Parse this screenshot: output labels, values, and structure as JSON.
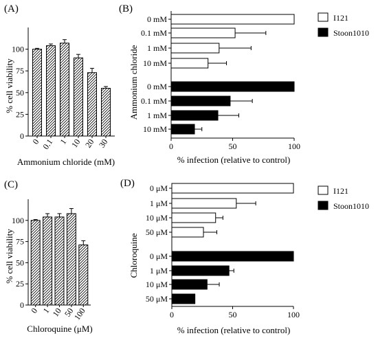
{
  "colors": {
    "black": "#000000",
    "white": "#ffffff",
    "error": "#000000"
  },
  "chart_data": [
    {
      "panel": "(A)",
      "type": "bar",
      "hatch": "diagonal",
      "categories": [
        "0",
        "0.1",
        "1",
        "10",
        "20",
        "30"
      ],
      "values": [
        100,
        104,
        107,
        90,
        73,
        55
      ],
      "errors": [
        1,
        2,
        4,
        4,
        5,
        2
      ],
      "xlabel": "Ammonium chloride (mM)",
      "ylabel": "% cell viability",
      "ylim": [
        0,
        125
      ],
      "yticks": [
        "0",
        "25",
        "50",
        "75",
        "100"
      ],
      "grid": false
    },
    {
      "panel": "(B)",
      "type": "bar",
      "orientation": "horizontal",
      "groups": [
        {
          "name": "I121",
          "fill": "#ffffff",
          "categories": [
            "0 mM",
            "0.1 mM",
            "1 mM",
            "10 mM"
          ],
          "values": [
            100,
            52,
            39,
            30
          ],
          "errors": [
            0,
            25,
            26,
            15
          ]
        },
        {
          "name": "Stoon1010",
          "fill": "#000000",
          "categories": [
            "0 mM",
            "0.1 mM",
            "1 mM",
            "10 mM"
          ],
          "values": [
            100,
            48,
            38,
            19
          ],
          "errors": [
            0,
            18,
            17,
            6
          ]
        }
      ],
      "xlabel": "% infection (relative to control)",
      "ylabel": "Ammonium chloride",
      "xlim": [
        0,
        100
      ],
      "xticks": [
        "0",
        "50",
        "100"
      ],
      "legend": [
        "I121",
        "Stoon1010"
      ],
      "legend_position": "right",
      "grid": false
    },
    {
      "panel": "(C)",
      "type": "bar",
      "hatch": "diagonal",
      "categories": [
        "0",
        "1",
        "10",
        "50",
        "100"
      ],
      "values": [
        100,
        104,
        104,
        108,
        71
      ],
      "errors": [
        1,
        4,
        4,
        6,
        5
      ],
      "xlabel": "Chloroquine (μM)",
      "ylabel": "% cell viability",
      "ylim": [
        0,
        125
      ],
      "yticks": [
        "0",
        "25",
        "50",
        "75",
        "100"
      ],
      "grid": false
    },
    {
      "panel": "(D)",
      "type": "bar",
      "orientation": "horizontal",
      "groups": [
        {
          "name": "I121",
          "fill": "#ffffff",
          "categories": [
            "0 μM",
            "1 μM",
            "10 μM",
            "50 μM"
          ],
          "values": [
            100,
            53,
            36,
            26
          ],
          "errors": [
            0,
            16,
            6,
            11
          ]
        },
        {
          "name": "Stoon1010",
          "fill": "#000000",
          "categories": [
            "0 μM",
            "1 μM",
            "10 μM",
            "50 μM"
          ],
          "values": [
            100,
            47,
            29,
            19
          ],
          "errors": [
            0,
            4,
            10,
            0
          ]
        }
      ],
      "xlabel": "% infection (relative to control)",
      "ylabel": "Chloroquine",
      "xlim": [
        0,
        100
      ],
      "xticks": [
        "0",
        "50",
        "100"
      ],
      "legend": [
        "I121",
        "Stoon1010"
      ],
      "legend_position": "right",
      "grid": false
    }
  ]
}
